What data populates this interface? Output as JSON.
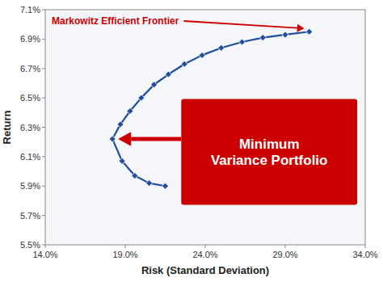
{
  "chart_data": {
    "type": "line",
    "x_label": "Risk (Standard Deviation)",
    "y_label": "Return",
    "xlim": [
      0.14,
      0.34
    ],
    "ylim": [
      0.055,
      0.071
    ],
    "xticks": [
      {
        "value": 0.14,
        "label": "14.0%"
      },
      {
        "value": 0.19,
        "label": "19.0%"
      },
      {
        "value": 0.24,
        "label": "24.0%"
      },
      {
        "value": 0.29,
        "label": "29.0%"
      },
      {
        "value": 0.34,
        "label": "34.0%"
      }
    ],
    "yticks": [
      {
        "value": 0.055,
        "label": "5.5%"
      },
      {
        "value": 0.057,
        "label": "5.7%"
      },
      {
        "value": 0.059,
        "label": "5.9%"
      },
      {
        "value": 0.061,
        "label": "6.1%"
      },
      {
        "value": 0.063,
        "label": "6.3%"
      },
      {
        "value": 0.065,
        "label": "6.5%"
      },
      {
        "value": 0.067,
        "label": "6.7%"
      },
      {
        "value": 0.069,
        "label": "6.9%"
      },
      {
        "value": 0.071,
        "label": "7.1%"
      }
    ],
    "grid": false,
    "series": [
      {
        "color": "#1f4e9c",
        "marker": "diamond",
        "x": [
          0.182,
          0.187,
          0.193,
          0.2,
          0.208,
          0.217,
          0.227,
          0.238,
          0.25,
          0.263,
          0.276,
          0.29,
          0.305
        ],
        "values": [
          0.0622,
          0.0632,
          0.0641,
          0.065,
          0.0659,
          0.0666,
          0.0673,
          0.0679,
          0.0684,
          0.0688,
          0.0691,
          0.0693,
          0.0695
        ]
      },
      {
        "color": "#1f4e9c",
        "marker": "diamond",
        "x": [
          0.182,
          0.188,
          0.196,
          0.205,
          0.215
        ],
        "values": [
          0.0622,
          0.0607,
          0.0597,
          0.0592,
          0.059
        ]
      }
    ],
    "annotations": [
      {
        "text": "Markowitz Efficient Frontier",
        "color": "#cc0000"
      },
      {
        "text": "Minimum\nVariance Portfolio",
        "color": "#cc0000"
      }
    ]
  }
}
